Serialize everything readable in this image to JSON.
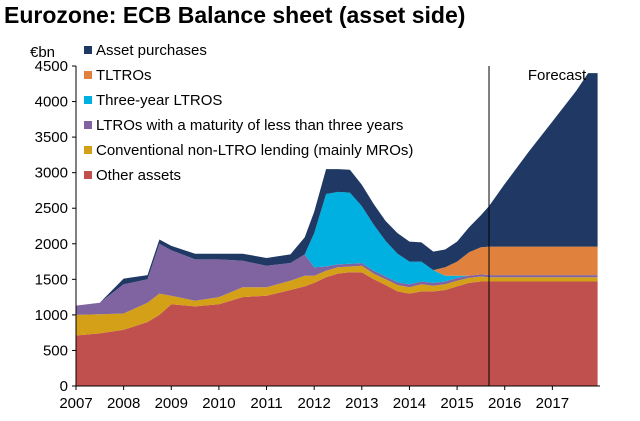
{
  "title": "Eurozone: ECB Balance sheet (asset side)",
  "chart_data": {
    "type": "area",
    "stacked": true,
    "title": "Eurozone: ECB Balance sheet (asset side)",
    "ylabel": "€bn",
    "xlabel": "",
    "ylim": [
      0,
      4500
    ],
    "xlim": [
      2007,
      2018
    ],
    "y_ticks": [
      "0",
      "500",
      "1000",
      "1500",
      "2000",
      "2500",
      "3000",
      "3500",
      "4000",
      "4500"
    ],
    "x_ticks": [
      "2007",
      "2008",
      "2009",
      "2010",
      "2011",
      "2012",
      "2013",
      "2014",
      "2015",
      "2016",
      "2017"
    ],
    "forecast_label": "Forecast",
    "forecast_start": 2015.67,
    "legend_position": "top-left",
    "x": [
      2007.0,
      2007.5,
      2008.0,
      2008.5,
      2008.75,
      2009.0,
      2009.5,
      2010.0,
      2010.5,
      2011.0,
      2011.5,
      2011.8,
      2012.0,
      2012.25,
      2012.5,
      2012.75,
      2013.0,
      2013.25,
      2013.5,
      2013.75,
      2014.0,
      2014.25,
      2014.5,
      2014.75,
      2015.0,
      2015.25,
      2015.5,
      2015.67,
      2016.0,
      2016.5,
      2017.0,
      2017.5,
      2017.75,
      2017.95
    ],
    "series": [
      {
        "name": "Other assets",
        "color": "#c0504d",
        "values": [
          710,
          740,
          790,
          900,
          1000,
          1150,
          1120,
          1150,
          1250,
          1270,
          1350,
          1400,
          1450,
          1530,
          1580,
          1600,
          1600,
          1500,
          1420,
          1330,
          1300,
          1330,
          1330,
          1350,
          1400,
          1450,
          1470,
          1470,
          1470,
          1470,
          1470,
          1470,
          1470,
          1470
        ]
      },
      {
        "name": "Conventional non-LTRO lending (mainly MROs)",
        "color": "#d4a017",
        "values": [
          290,
          270,
          230,
          270,
          300,
          120,
          80,
          100,
          140,
          120,
          130,
          150,
          100,
          90,
          90,
          80,
          90,
          80,
          80,
          90,
          90,
          100,
          80,
          80,
          80,
          70,
          70,
          60,
          60,
          60,
          60,
          60,
          60,
          60
        ]
      },
      {
        "name": "LTROs with a maturity of less than three years",
        "color": "#8064a2",
        "values": [
          130,
          160,
          410,
          330,
          700,
          640,
          580,
          530,
          370,
          300,
          250,
          300,
          120,
          60,
          40,
          40,
          40,
          40,
          40,
          40,
          40,
          40,
          40,
          40,
          40,
          30,
          30,
          30,
          30,
          30,
          30,
          30,
          30,
          30
        ]
      },
      {
        "name": "Three-year LTROS",
        "color": "#00b0e0",
        "values": [
          0,
          0,
          0,
          0,
          0,
          0,
          0,
          0,
          0,
          0,
          0,
          0,
          480,
          1020,
          1020,
          1000,
          800,
          650,
          500,
          400,
          320,
          280,
          180,
          80,
          30,
          0,
          0,
          0,
          0,
          0,
          0,
          0,
          0,
          0
        ]
      },
      {
        "name": "TLTROs",
        "color": "#e0823d",
        "values": [
          0,
          0,
          0,
          0,
          0,
          0,
          0,
          0,
          0,
          0,
          0,
          0,
          0,
          0,
          0,
          0,
          0,
          0,
          0,
          0,
          0,
          0,
          0,
          120,
          200,
          330,
          380,
          400,
          400,
          400,
          400,
          400,
          400,
          400
        ]
      },
      {
        "name": "Asset purchases",
        "color": "#1f3864",
        "values": [
          0,
          0,
          80,
          60,
          60,
          60,
          80,
          80,
          100,
          110,
          120,
          240,
          300,
          350,
          320,
          320,
          300,
          290,
          280,
          290,
          280,
          270,
          260,
          250,
          280,
          350,
          450,
          570,
          880,
          1330,
          1760,
          2190,
          2440,
          2440
        ]
      }
    ]
  }
}
